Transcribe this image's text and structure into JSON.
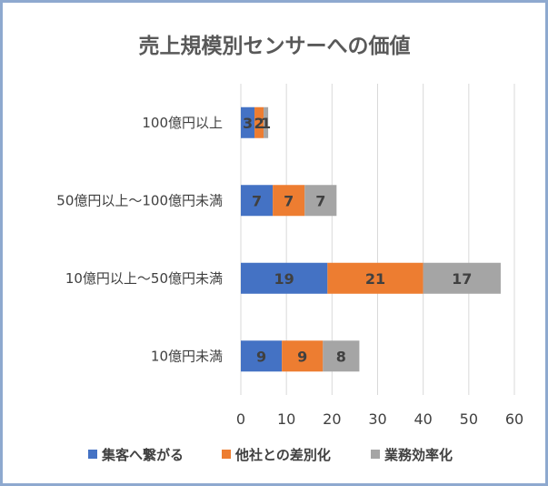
{
  "chart_data": {
    "type": "bar",
    "orientation": "horizontal",
    "stacked": true,
    "title": "売上規模別センサーへの価値",
    "categories": [
      "100億円以上",
      "50億円以上～100億円未満",
      "10億円以上～50億円未満",
      "10億円未満"
    ],
    "series": [
      {
        "name": "集客へ繋がる",
        "color": "#4472c4",
        "values": [
          3,
          7,
          19,
          9
        ]
      },
      {
        "name": "他社との差別化",
        "color": "#ed7d31",
        "values": [
          2,
          7,
          21,
          9
        ]
      },
      {
        "name": "業務効率化",
        "color": "#a5a5a5",
        "values": [
          1,
          7,
          17,
          8
        ]
      }
    ],
    "xlim": [
      0,
      60
    ],
    "xticks": [
      0,
      10,
      20,
      30,
      40,
      50,
      60
    ],
    "grid": true,
    "legend_position": "bottom"
  }
}
